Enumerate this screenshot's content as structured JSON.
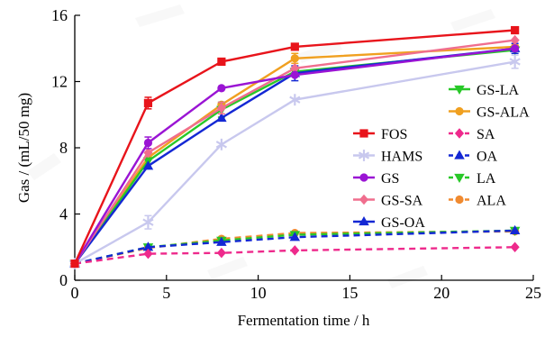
{
  "chart_data": {
    "type": "line",
    "xlabel": "Fermentation time / h",
    "ylabel": "Gas / (mL/50 mg)",
    "xlim": [
      0,
      25
    ],
    "ylim": [
      0,
      16
    ],
    "xticks": [
      "0",
      "5",
      "10",
      "15",
      "20",
      "25"
    ],
    "yticks": [
      "0",
      "4",
      "8",
      "12",
      "16"
    ],
    "grid": false,
    "legend_position": "right-center",
    "x": [
      0,
      4,
      8,
      12,
      24
    ],
    "series": [
      {
        "name": "FOS",
        "values": [
          1.0,
          10.7,
          13.2,
          14.1,
          15.1
        ],
        "color": "#e8141b",
        "marker": "square",
        "dash": false
      },
      {
        "name": "HAMS",
        "values": [
          1.0,
          3.5,
          8.2,
          10.9,
          13.2
        ],
        "color": "#c8c8ee",
        "marker": "star",
        "dash": false
      },
      {
        "name": "GS",
        "values": [
          1.0,
          8.3,
          11.6,
          12.4,
          14.0
        ],
        "color": "#9a14d4",
        "marker": "circle",
        "dash": false
      },
      {
        "name": "GS-SA",
        "values": [
          1.0,
          7.7,
          10.4,
          12.8,
          14.5
        ],
        "color": "#f06e8e",
        "marker": "diamond",
        "dash": false
      },
      {
        "name": "GS-OA",
        "values": [
          1.0,
          6.9,
          9.8,
          12.5,
          14.0
        ],
        "color": "#1428d4",
        "marker": "triangle",
        "dash": false
      },
      {
        "name": "GS-LA",
        "values": [
          1.0,
          7.2,
          10.3,
          12.6,
          13.9
        ],
        "color": "#28c828",
        "marker": "triangle-down",
        "dash": false
      },
      {
        "name": "GS-ALA",
        "values": [
          1.0,
          7.4,
          10.6,
          13.4,
          14.1
        ],
        "color": "#f0a020",
        "marker": "circle",
        "dash": false
      },
      {
        "name": "SA",
        "values": [
          1.0,
          1.6,
          1.65,
          1.8,
          2.0
        ],
        "color": "#ee2a8c",
        "marker": "diamond",
        "dash": true
      },
      {
        "name": "OA",
        "values": [
          1.0,
          2.0,
          2.3,
          2.6,
          3.0
        ],
        "color": "#1428d4",
        "marker": "triangle",
        "dash": true
      },
      {
        "name": "LA",
        "values": [
          1.0,
          2.0,
          2.4,
          2.75,
          3.0
        ],
        "color": "#28c828",
        "marker": "triangle-down",
        "dash": true
      },
      {
        "name": "ALA",
        "values": [
          1.0,
          1.95,
          2.5,
          2.85,
          2.95
        ],
        "color": "#f08a30",
        "marker": "circle",
        "dash": true
      }
    ],
    "error_bars": [
      {
        "series": "FOS",
        "x": 4,
        "err": 0.35
      },
      {
        "series": "FOS",
        "x": 24,
        "err": 0.2
      },
      {
        "series": "HAMS",
        "x": 4,
        "err": 0.4
      },
      {
        "series": "HAMS",
        "x": 24,
        "err": 0.4
      },
      {
        "series": "GS",
        "x": 4,
        "err": 0.35
      },
      {
        "series": "GS-SA",
        "x": 8,
        "err": 0.35
      },
      {
        "series": "GS-LA",
        "x": 8,
        "err": 0.45
      },
      {
        "series": "GS-OA",
        "x": 12,
        "err": 0.45
      },
      {
        "series": "GS-OA",
        "x": 24,
        "err": 0.3
      },
      {
        "series": "GS-ALA",
        "x": 12,
        "err": 0.3
      }
    ],
    "legend_columns": [
      [
        "FOS",
        "HAMS",
        "GS",
        "GS-SA",
        "GS-OA"
      ],
      [
        "GS-LA",
        "GS-ALA",
        "SA",
        "OA",
        "LA",
        "ALA"
      ]
    ]
  }
}
